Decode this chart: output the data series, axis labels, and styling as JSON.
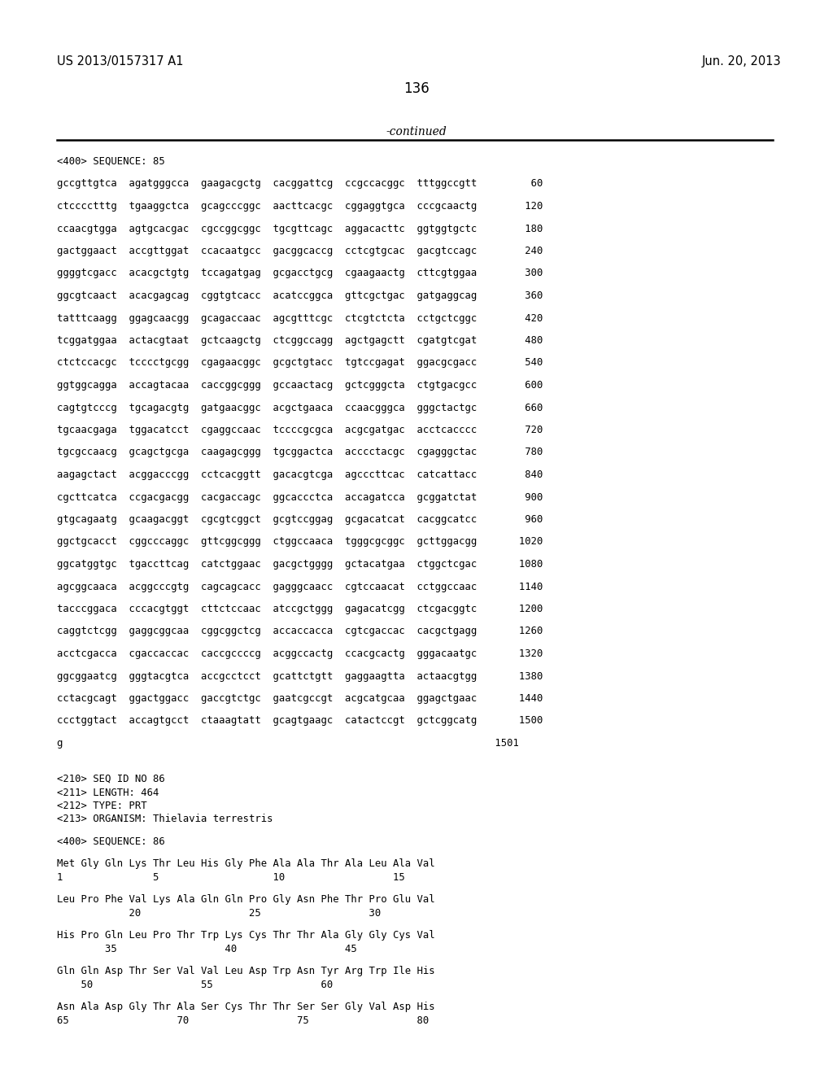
{
  "header_left": "US 2013/0157317 A1",
  "header_right": "Jun. 20, 2013",
  "page_number": "136",
  "continued_text": "-continued",
  "bg_color": "#ffffff",
  "text_color": "#000000",
  "seq85_lines": [
    [
      "gccgttgtca  agatgggcca  gaagacgctg  cacggattcg  ccgccacggc  tttggccgtt         60"
    ],
    [
      "ctcccctttg  tgaaggctca  gcagcccggc  aacttcacgc  cggaggtgca  cccgcaactg        120"
    ],
    [
      "ccaacgtgga  agtgcacgac  cgccggcggc  tgcgttcagc  aggacacttc  ggtggtgctc        180"
    ],
    [
      "gactggaact  accgttggat  ccacaatgcc  gacggcaccg  cctcgtgcac  gacgtccagc        240"
    ],
    [
      "ggggtcgacc  acacgctgtg  tccagatgag  gcgacctgcg  cgaagaactg  cttcgtggaa        300"
    ],
    [
      "ggcgtcaact  acacgagcag  cggtgtcacc  acatccggca  gttcgctgac  gatgaggcag        360"
    ],
    [
      "tatttcaagg  ggagcaacgg  gcagaccaac  agcgtttcgc  ctcgtctcta  cctgctcggc        420"
    ],
    [
      "tcggatggaa  actacgtaat  gctcaagctg  ctcggccagg  agctgagctt  cgatgtcgat        480"
    ],
    [
      "ctctccacgc  tcccctgcgg  cgagaacggc  gcgctgtacc  tgtccgagat  ggacgcgacc        540"
    ],
    [
      "ggtggcagga  accagtacaa  caccggcggg  gccaactacg  gctcgggcta  ctgtgacgcc        600"
    ],
    [
      "cagtgtcccg  tgcagacgtg  gatgaacggc  acgctgaaca  ccaacgggca  gggctactgc        660"
    ],
    [
      "tgcaacgaga  tggacatcct  cgaggccaac  tccccgcgca  acgcgatgac  acctcacccc        720"
    ],
    [
      "tgcgccaacg  gcagctgcga  caagagcggg  tgcggactca  acccctacgc  cgagggctac        780"
    ],
    [
      "aagagctact  acggacccgg  cctcacggtt  gacacgtcga  agcccttcac  catcattacc        840"
    ],
    [
      "cgcttcatca  ccgacgacgg  cacgaccagc  ggcaccctca  accagatcca  gcggatctat        900"
    ],
    [
      "gtgcagaatg  gcaagacggt  cgcgtcggct  gcgtccggag  gcgacatcat  cacggcatcc        960"
    ],
    [
      "ggctgcacct  cggcccaggc  gttcggcggg  ctggccaaca  tgggcgcggc  gcttggacgg       1020"
    ],
    [
      "ggcatggtgc  tgaccttcag  catctggaac  gacgctgggg  gctacatgaa  ctggctcgac       1080"
    ],
    [
      "agcggcaaca  acggcccgtg  cagcagcacc  gagggcaacc  cgtccaacat  cctggccaac       1140"
    ],
    [
      "tacccggaca  cccacgtggt  cttctccaac  atccgctggg  gagacatcgg  ctcgacggtc       1200"
    ],
    [
      "caggtctcgg  gaggcggcaa  cggcggctcg  accaccacca  cgtcgaccac  cacgctgagg       1260"
    ],
    [
      "acctcgacca  cgaccaccac  caccgccccg  acggccactg  ccacgcactg  gggacaatgc       1320"
    ],
    [
      "ggcggaatcg  gggtacgtca  accgcctcct  gcattctgtt  gaggaagtta  actaacgtgg       1380"
    ],
    [
      "cctacgcagt  ggactggacc  gaccgtctgc  gaatcgccgt  acgcatgcaa  ggagctgaac       1440"
    ],
    [
      "ccctggtact  accagtgcct  ctaaagtatt  gcagtgaagc  catactccgt  gctcggcatg       1500"
    ],
    [
      "g                                                                        1501"
    ]
  ],
  "seq86_header": [
    "<210> SEQ ID NO 86",
    "<211> LENGTH: 464",
    "<212> TYPE: PRT",
    "<213> ORGANISM: Thielavia terrestris"
  ],
  "seq86_lines": [
    "Met Gly Gln Lys Thr Leu His Gly Phe Ala Ala Thr Ala Leu Ala Val",
    "1               5                   10                  15",
    "Leu Pro Phe Val Lys Ala Gln Gln Pro Gly Asn Phe Thr Pro Glu Val",
    "            20                  25                  30",
    "His Pro Gln Leu Pro Thr Trp Lys Cys Thr Thr Ala Gly Gly Cys Val",
    "        35                  40                  45",
    "Gln Gln Asp Thr Ser Val Val Leu Asp Trp Asn Tyr Arg Trp Ile His",
    "    50                  55                  60",
    "Asn Ala Asp Gly Thr Ala Ser Cys Thr Thr Ser Ser Gly Val Asp His",
    "65                  70                  75                  80"
  ]
}
